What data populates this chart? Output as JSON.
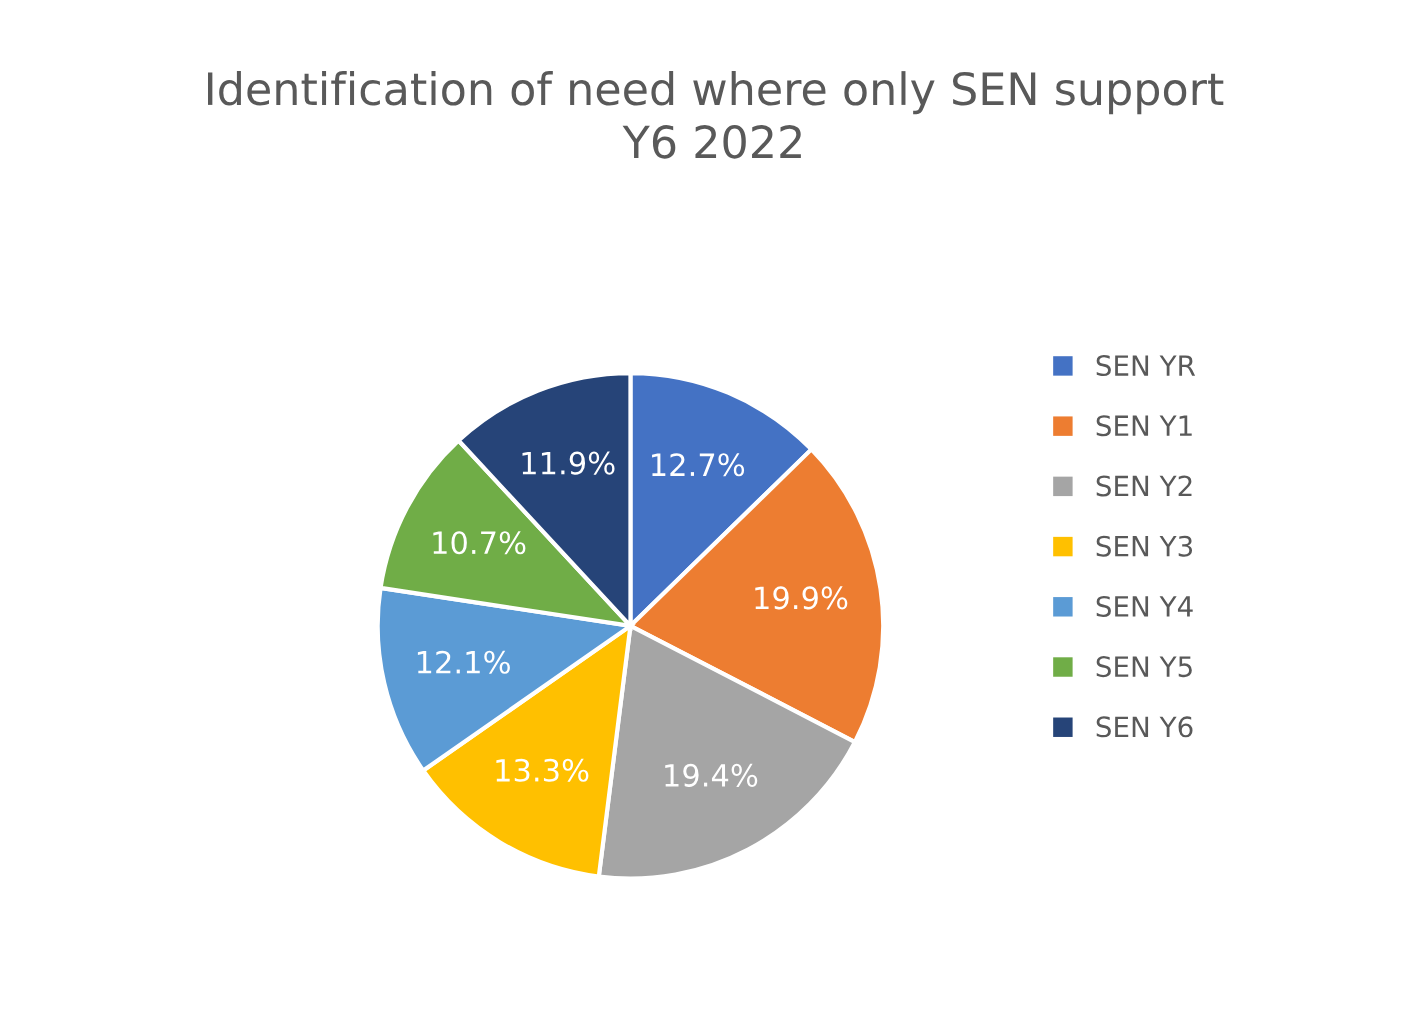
{
  "chart_data": {
    "type": "pie",
    "title": "Identification of need where only SEN support\nY6 2022",
    "categories": [
      "SEN YR",
      "SEN Y1",
      "SEN Y2",
      "SEN Y3",
      "SEN Y4",
      "SEN Y5",
      "SEN Y6"
    ],
    "values": [
      12.7,
      19.9,
      19.4,
      13.3,
      12.1,
      10.7,
      11.9
    ],
    "colors": [
      "#4472c4",
      "#ed7d31",
      "#a5a5a5",
      "#ffc000",
      "#5b9bd5",
      "#70ad47",
      "#264478"
    ],
    "value_labels": [
      "12.7%",
      "19.9%",
      "19.4%",
      "13.3%",
      "12.1%",
      "10.7%",
      "11.9%"
    ],
    "legend": "right"
  }
}
